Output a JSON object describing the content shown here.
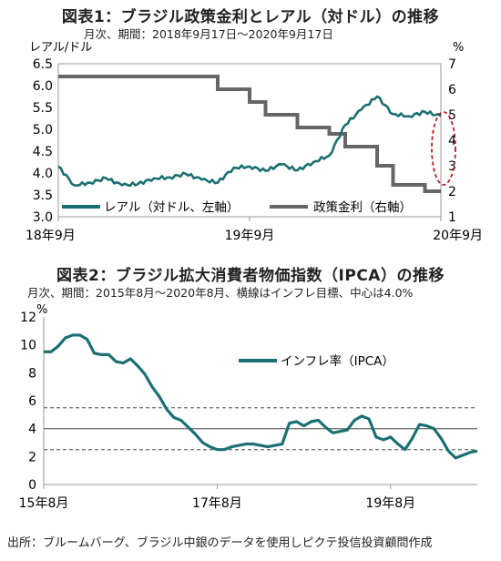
{
  "chart1": {
    "title": "図表1：ブラジル政策金利とレアル（対ドル）の推移",
    "subtitle": "月次、期間：2018年9月17日～2020年9月17日",
    "left_unit": "レアル/ドル",
    "right_unit": "%",
    "left_ticks": [
      "6.5",
      "6.0",
      "5.5",
      "5.0",
      "4.5",
      "4.0",
      "3.5",
      "3.0"
    ],
    "right_ticks": [
      "7",
      "6",
      "5",
      "4",
      "3",
      "2",
      "1"
    ],
    "x_ticks": [
      "18年9月",
      "19年9月",
      "20年9月"
    ],
    "legend_real": "レアル（対ドル、左軸）",
    "legend_rate": "政策金利（右軸）"
  },
  "chart2": {
    "title": "図表2：ブラジル拡大消費者物価指数（IPCA）の推移",
    "subtitle": "月次、期間：2015年8月～2020年8月、横線はインフレ目標、中心は4.0%",
    "y_unit": "%",
    "y_ticks": [
      "12",
      "10",
      "8",
      "6",
      "4",
      "2",
      "0"
    ],
    "x_ticks": [
      "15年8月",
      "17年8月",
      "19年8月"
    ],
    "legend": "インフレ率（IPCA）"
  },
  "footer": "出所：ブルームバーグ、ブラジル中銀のデータを使用しピクテ投信投資顧問作成",
  "chart_data": [
    {
      "type": "line",
      "title": "図表1：ブラジル政策金利とレアル（対ドル）の推移",
      "x": [
        "2018-09",
        "2018-10",
        "2018-11",
        "2018-12",
        "2019-01",
        "2019-02",
        "2019-03",
        "2019-04",
        "2019-05",
        "2019-06",
        "2019-07",
        "2019-08",
        "2019-09",
        "2019-10",
        "2019-11",
        "2019-12",
        "2020-01",
        "2020-02",
        "2020-03",
        "2020-04",
        "2020-05",
        "2020-06",
        "2020-07",
        "2020-08",
        "2020-09"
      ],
      "series": [
        {
          "name": "レアル（対ドル、左軸）",
          "axis": "left",
          "color": "#1b6f73",
          "values": [
            4.15,
            3.72,
            3.78,
            3.88,
            3.72,
            3.75,
            3.88,
            3.9,
            3.98,
            3.85,
            3.78,
            4.12,
            4.15,
            4.05,
            4.2,
            4.06,
            4.25,
            4.4,
            5.1,
            5.45,
            5.75,
            5.35,
            5.3,
            5.4,
            5.3
          ]
        },
        {
          "name": "政策金利（右軸）",
          "axis": "right",
          "color": "#666666",
          "values": [
            6.5,
            6.5,
            6.5,
            6.5,
            6.5,
            6.5,
            6.5,
            6.5,
            6.5,
            6.5,
            6.0,
            6.0,
            5.5,
            5.0,
            5.0,
            4.5,
            4.5,
            4.25,
            3.75,
            3.75,
            3.0,
            2.25,
            2.25,
            2.0,
            2.0
          ]
        }
      ],
      "ylim_left": [
        3.0,
        6.5
      ],
      "ylim_right": [
        1,
        7
      ],
      "xlabel": "",
      "ylabel_left": "レアル/ドル",
      "ylabel_right": "%"
    },
    {
      "type": "line",
      "title": "図表2：ブラジル拡大消費者物価指数（IPCA）の推移",
      "x": [
        "2015-08",
        "2015-09",
        "2015-10",
        "2015-11",
        "2015-12",
        "2016-01",
        "2016-02",
        "2016-03",
        "2016-04",
        "2016-05",
        "2016-06",
        "2016-07",
        "2016-08",
        "2016-09",
        "2016-10",
        "2016-11",
        "2016-12",
        "2017-01",
        "2017-02",
        "2017-03",
        "2017-04",
        "2017-05",
        "2017-06",
        "2017-07",
        "2017-08",
        "2017-09",
        "2017-10",
        "2017-11",
        "2017-12",
        "2018-01",
        "2018-02",
        "2018-03",
        "2018-04",
        "2018-05",
        "2018-06",
        "2018-07",
        "2018-08",
        "2018-09",
        "2018-10",
        "2018-11",
        "2018-12",
        "2019-01",
        "2019-02",
        "2019-03",
        "2019-04",
        "2019-05",
        "2019-06",
        "2019-07",
        "2019-08",
        "2019-09",
        "2019-10",
        "2019-11",
        "2019-12",
        "2020-01",
        "2020-02",
        "2020-03",
        "2020-04",
        "2020-05",
        "2020-06",
        "2020-07",
        "2020-08"
      ],
      "series": [
        {
          "name": "インフレ率（IPCA）",
          "color": "#1b6f73",
          "values": [
            9.5,
            9.5,
            9.9,
            10.5,
            10.7,
            10.7,
            10.4,
            9.4,
            9.3,
            9.3,
            8.8,
            8.7,
            9.0,
            8.5,
            7.9,
            7.0,
            6.3,
            5.4,
            4.8,
            4.6,
            4.1,
            3.6,
            3.0,
            2.7,
            2.5,
            2.5,
            2.7,
            2.8,
            2.9,
            2.9,
            2.8,
            2.7,
            2.8,
            2.9,
            4.4,
            4.5,
            4.2,
            4.5,
            4.6,
            4.1,
            3.7,
            3.8,
            3.9,
            4.6,
            4.9,
            4.7,
            3.4,
            3.2,
            3.4,
            2.9,
            2.5,
            3.3,
            4.3,
            4.2,
            4.0,
            3.3,
            2.4,
            1.9,
            2.1,
            2.3,
            2.4
          ]
        }
      ],
      "target_lines": [
        2.5,
        4.0,
        5.5
      ],
      "ylim": [
        0,
        12
      ],
      "xlabel": "",
      "ylabel": "%"
    }
  ]
}
